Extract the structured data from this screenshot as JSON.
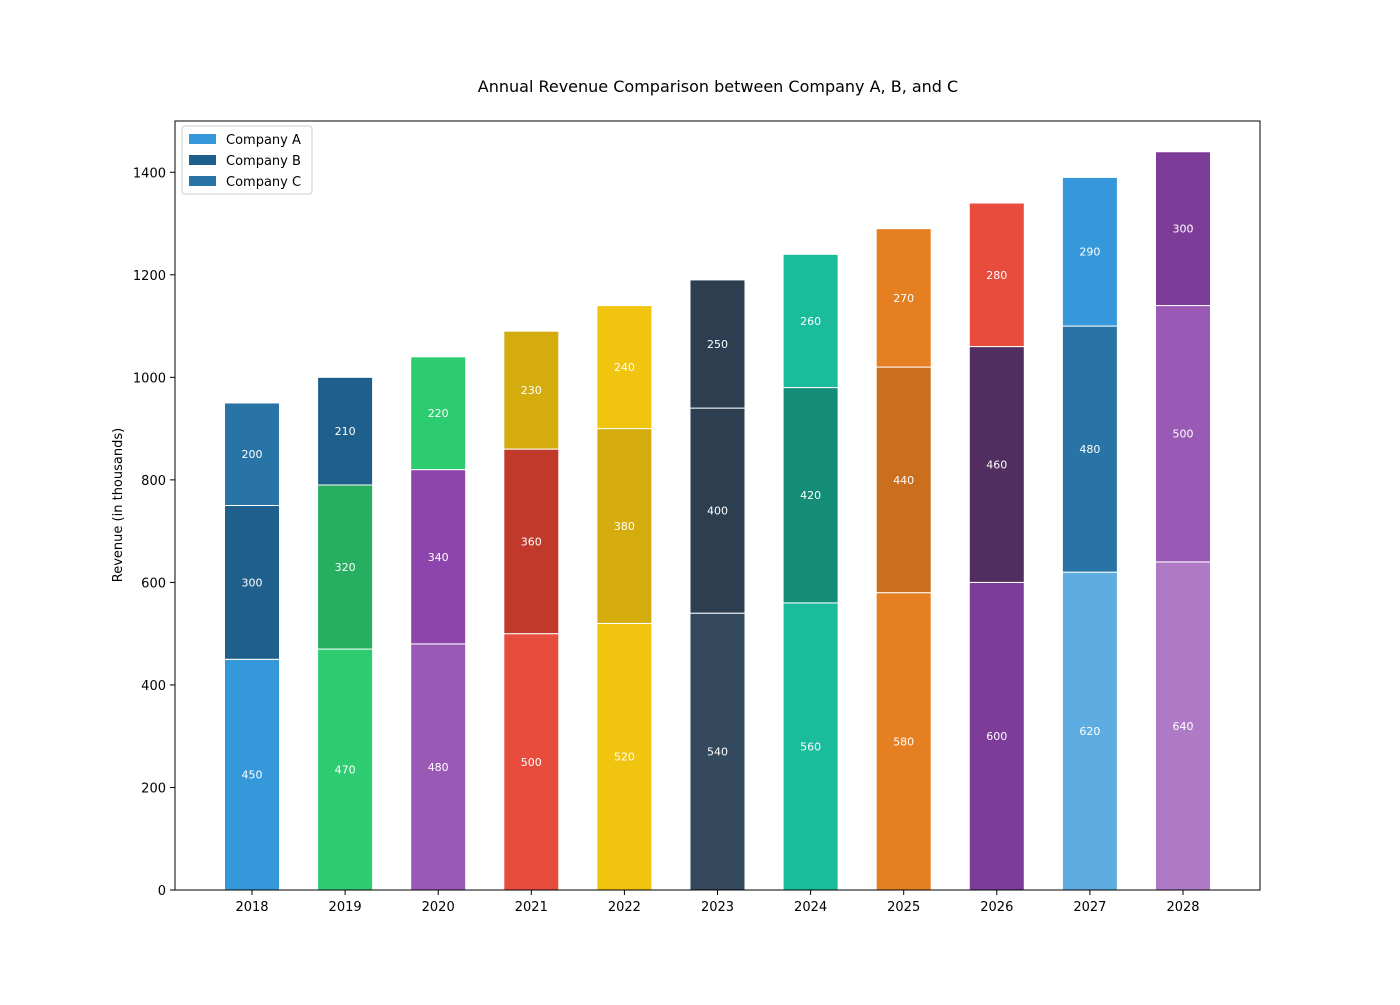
{
  "chart_data": {
    "type": "bar",
    "stacked": true,
    "title": "Annual Revenue Comparison between Company A, B, and C",
    "xlabel": "",
    "ylabel": "Revenue (in thousands)",
    "ylim": [
      0,
      1500
    ],
    "yticks": [
      0,
      200,
      400,
      600,
      800,
      1000,
      1200,
      1400
    ],
    "categories": [
      "2018",
      "2019",
      "2020",
      "2021",
      "2022",
      "2023",
      "2024",
      "2025",
      "2026",
      "2027",
      "2028"
    ],
    "series": [
      {
        "name": "Company A",
        "values": [
          450,
          470,
          480,
          500,
          520,
          540,
          560,
          580,
          600,
          620,
          640
        ],
        "colors": [
          "#3498db",
          "#2ecc71",
          "#9b59b6",
          "#e74c3c",
          "#f1c40f",
          "#34495e",
          "#1abc9c",
          "#e67e22",
          "#7d3c98",
          "#5dade2",
          "#af7ac5"
        ]
      },
      {
        "name": "Company B",
        "values": [
          300,
          320,
          340,
          360,
          380,
          400,
          420,
          440,
          460,
          480,
          500
        ],
        "colors": [
          "#1f5f8b",
          "#27ae60",
          "#8e44ad",
          "#c0392b",
          "#d4ac0d",
          "#2c3e50",
          "#138d75",
          "#ca6f1e",
          "#512e5f",
          "#2874a6",
          "#9b59b6"
        ]
      },
      {
        "name": "Company C",
        "values": [
          200,
          210,
          220,
          230,
          240,
          250,
          260,
          270,
          280,
          290,
          300
        ],
        "colors": [
          "#2874a6",
          "#1f5f8b",
          "#2ecc71",
          "#d4ac0d",
          "#f1c40f",
          "#2c3e50",
          "#1abc9c",
          "#e67e22",
          "#e74c3c",
          "#3498db",
          "#7d3c98"
        ]
      }
    ],
    "legend": {
      "placement": "top-left",
      "entries": [
        {
          "name": "Company A",
          "color": "#3498db"
        },
        {
          "name": "Company B",
          "color": "#1f5f8b"
        },
        {
          "name": "Company C",
          "color": "#2874a6"
        }
      ]
    },
    "grid": false
  }
}
